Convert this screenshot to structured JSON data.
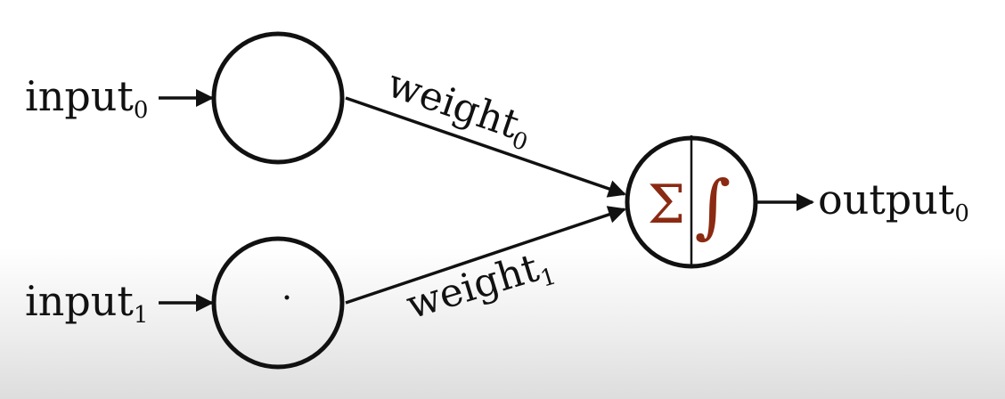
{
  "nodes": {
    "input0": {
      "label": "input",
      "sub": "0"
    },
    "input1": {
      "label": "input",
      "sub": "1"
    },
    "output0": {
      "label": "output",
      "sub": "0"
    }
  },
  "edges": {
    "weight0": {
      "label": "weight",
      "sub": "0"
    },
    "weight1": {
      "label": "weight",
      "sub": "1"
    }
  },
  "neuron": {
    "sum_symbol": "Σ",
    "activation_symbol": "∫",
    "symbol_color": "#8b2a12"
  }
}
